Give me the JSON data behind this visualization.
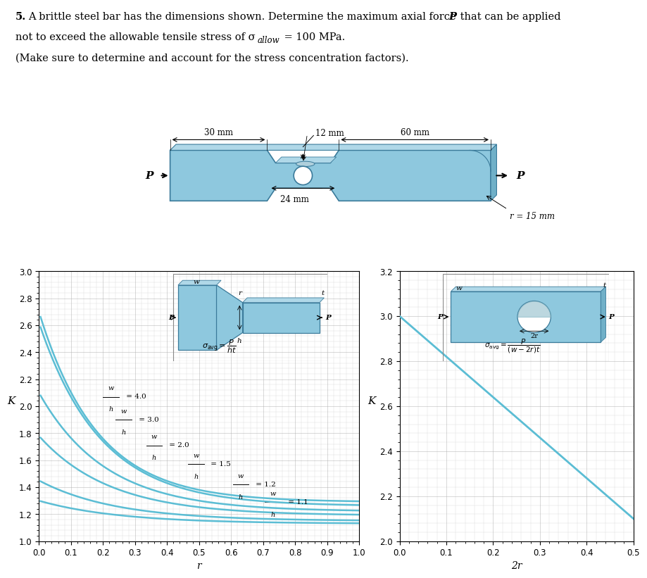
{
  "title_bold": "5.",
  "title_rest": " A brittle steel bar has the dimensions shown. Determine the maximum axial force ",
  "title_P": "P",
  "title_end": " that can be applied",
  "line2a": "not to exceed the allowable tensile stress of σ",
  "line2_sub": "allow",
  "line2b": " = 100 MPa.",
  "line3": "(Make sure to determine and account for the stress concentration factors).",
  "chart1_ylabel": "K",
  "chart1_xlabel": "r",
  "chart1_xlim": [
    0,
    1.0
  ],
  "chart1_ylim": [
    1.0,
    3.0
  ],
  "chart1_xticks": [
    0,
    0.1,
    0.2,
    0.3,
    0.4,
    0.5,
    0.6,
    0.7,
    0.8,
    0.9,
    1.0
  ],
  "chart1_yticks": [
    1.0,
    1.2,
    1.4,
    1.6,
    1.8,
    2.0,
    2.2,
    2.4,
    2.6,
    2.8,
    3.0
  ],
  "chart2_ylabel": "K",
  "chart2_xlabel": "2r",
  "chart2_xlim": [
    0,
    0.5
  ],
  "chart2_ylim": [
    2.0,
    3.2
  ],
  "chart2_xticks": [
    0,
    0.1,
    0.2,
    0.3,
    0.4,
    0.5
  ],
  "chart2_yticks": [
    2.0,
    2.2,
    2.4,
    2.6,
    2.8,
    3.0,
    3.2
  ],
  "line_color": "#5bbdd4",
  "grid_color": "#aaaaaa",
  "bg_color": "#ffffff",
  "inset_bg": "#d8eef6",
  "bar_face": "#8ec8de",
  "bar_top": "#b0d8e8",
  "bar_right": "#70b0c8",
  "bar_edge": "#3a7a9a",
  "wh_values": [
    4.0,
    3.0,
    2.0,
    1.5,
    1.2,
    1.1
  ]
}
